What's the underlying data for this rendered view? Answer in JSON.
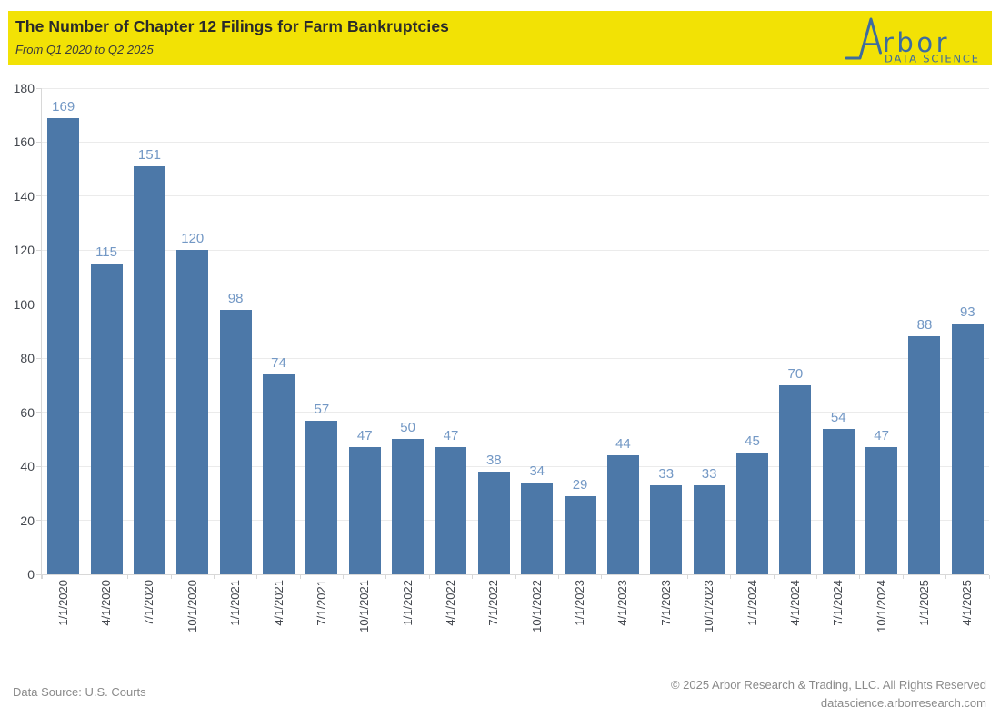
{
  "header": {
    "title": "The Number of Chapter 12 Filings for Farm Bankruptcies",
    "subtitle": "From Q1 2020 to Q2 2025",
    "background_color": "#F2E205",
    "logo": {
      "brand": "rbor",
      "tagline": "DATA SCIENCE",
      "color": "#3D6C9E",
      "icon": "line-spike-A-icon"
    }
  },
  "chart_data": {
    "type": "bar",
    "title": "The Number of Chapter 12 Filings for Farm Bankruptcies",
    "subtitle": "From Q1 2020 to Q2 2025",
    "categories": [
      "1/1/2020",
      "4/1/2020",
      "7/1/2020",
      "10/1/2020",
      "1/1/2021",
      "4/1/2021",
      "7/1/2021",
      "10/1/2021",
      "1/1/2022",
      "4/1/2022",
      "7/1/2022",
      "10/1/2022",
      "1/1/2023",
      "4/1/2023",
      "7/1/2023",
      "10/1/2023",
      "1/1/2024",
      "4/1/2024",
      "7/1/2024",
      "10/1/2024",
      "1/1/2025",
      "4/1/2025"
    ],
    "values": [
      169,
      115,
      151,
      120,
      98,
      74,
      57,
      47,
      50,
      47,
      38,
      34,
      29,
      44,
      33,
      33,
      45,
      70,
      54,
      47,
      88,
      93
    ],
    "xlabel": "",
    "ylabel": "",
    "ylim": [
      0,
      180
    ],
    "yticks": [
      0,
      20,
      40,
      60,
      80,
      100,
      120,
      140,
      160,
      180
    ],
    "grid": true,
    "legend": "none",
    "bar_color": "#4C78A8",
    "value_label_color": "#7398C5",
    "axis_label_color": "#43474E",
    "gridline_color": "#EBEBEB"
  },
  "footer": {
    "source": "Data Source: U.S. Courts",
    "copyright": "© 2025 Arbor Research & Trading, LLC. All Rights Reserved",
    "website": "datascience.arborresearch.com"
  }
}
